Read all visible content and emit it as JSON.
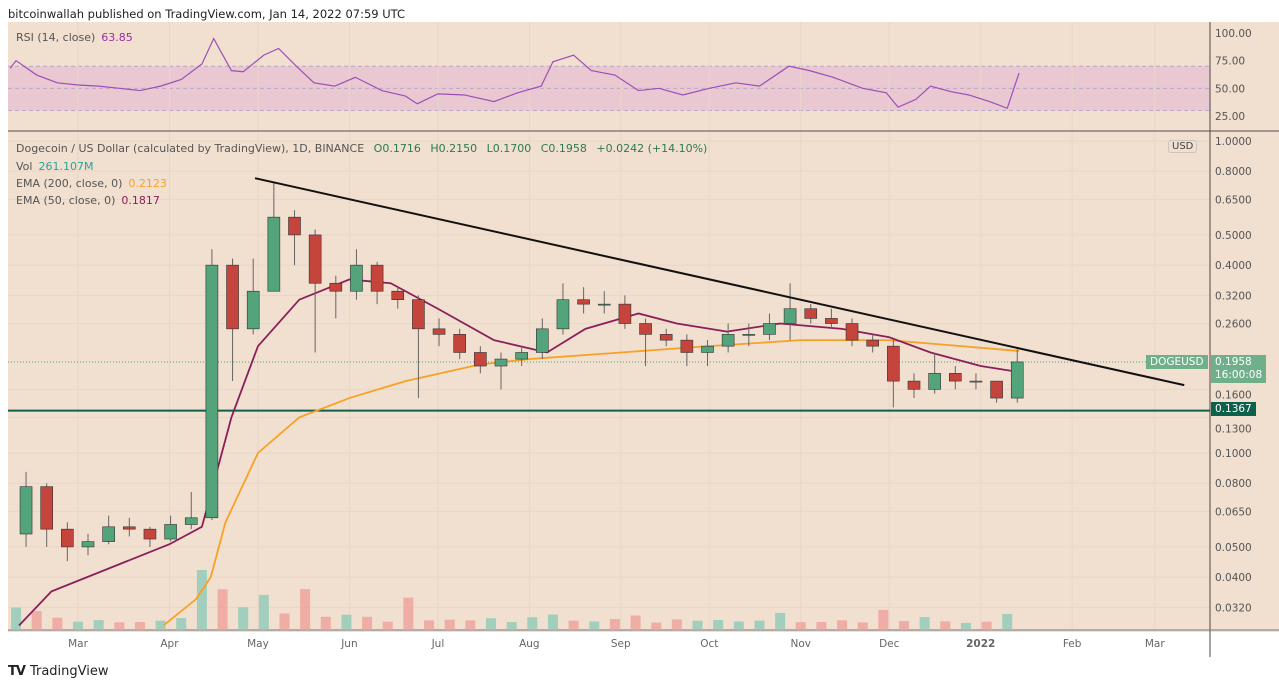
{
  "publisher_line": "bitcoinwallah published on TradingView.com, Jan 14, 2022 07:59 UTC",
  "rsi_legend": {
    "label": "RSI (14, close)",
    "value": "63.85"
  },
  "main_legend": {
    "title": "Dogecoin / US Dollar (calculated by TradingView), 1D, BINANCE",
    "open": "O0.1716",
    "high": "H0.2150",
    "low": "L0.1700",
    "close": "C0.1958",
    "change": "+0.0242 (+14.10%)",
    "vol_label": "Vol",
    "vol_value": "261.107M",
    "ema200_label": "EMA (200, close, 0)",
    "ema200_value": "0.2123",
    "ema50_label": "EMA (50, close, 0)",
    "ema50_value": "0.1817"
  },
  "symbol_tag": "DOGEUSD",
  "price_tag": {
    "price": "0.1958",
    "countdown": "16:00:08"
  },
  "support_tag": "0.1367",
  "currency": "USD",
  "branding": "TradingView",
  "colors": {
    "background": "#f1dfcf",
    "up": "#53a47a",
    "down": "#c5453c",
    "ema200": "#f7a227",
    "ema50": "#8a1f5a",
    "rsi": "#9b4fb8",
    "rsi_band": "#e9c8d2",
    "support": "#0d6049",
    "trendline": "#111111"
  },
  "chart_data": [
    {
      "type": "line",
      "title": "RSI (14, close)",
      "ylim": [
        0,
        100
      ],
      "yticks": [
        "100.00",
        "75.00",
        "50.00",
        "25.00"
      ],
      "band": [
        30,
        70
      ],
      "series": [
        {
          "name": "RSI (14, close)",
          "points": [
            [
              "2021-02-06",
              68
            ],
            [
              "2021-02-08",
              75
            ],
            [
              "2021-02-15",
              62
            ],
            [
              "2021-02-22",
              55
            ],
            [
              "2021-03-01",
              53
            ],
            [
              "2021-03-08",
              52
            ],
            [
              "2021-03-15",
              50
            ],
            [
              "2021-03-22",
              48
            ],
            [
              "2021-03-29",
              52
            ],
            [
              "2021-04-05",
              58
            ],
            [
              "2021-04-12",
              72
            ],
            [
              "2021-04-16",
              95
            ],
            [
              "2021-04-22",
              66
            ],
            [
              "2021-04-26",
              65
            ],
            [
              "2021-05-03",
              80
            ],
            [
              "2021-05-08",
              86
            ],
            [
              "2021-05-14",
              70
            ],
            [
              "2021-05-20",
              55
            ],
            [
              "2021-05-27",
              52
            ],
            [
              "2021-06-03",
              60
            ],
            [
              "2021-06-12",
              48
            ],
            [
              "2021-06-20",
              43
            ],
            [
              "2021-06-24",
              36
            ],
            [
              "2021-07-01",
              45
            ],
            [
              "2021-07-10",
              44
            ],
            [
              "2021-07-20",
              38
            ],
            [
              "2021-07-28",
              46
            ],
            [
              "2021-08-05",
              52
            ],
            [
              "2021-08-09",
              74
            ],
            [
              "2021-08-16",
              80
            ],
            [
              "2021-08-22",
              66
            ],
            [
              "2021-08-30",
              62
            ],
            [
              "2021-09-07",
              48
            ],
            [
              "2021-09-14",
              50
            ],
            [
              "2021-09-22",
              44
            ],
            [
              "2021-10-01",
              50
            ],
            [
              "2021-10-10",
              55
            ],
            [
              "2021-10-18",
              52
            ],
            [
              "2021-10-28",
              70
            ],
            [
              "2021-11-04",
              66
            ],
            [
              "2021-11-12",
              60
            ],
            [
              "2021-11-22",
              50
            ],
            [
              "2021-11-30",
              46
            ],
            [
              "2021-12-04",
              33
            ],
            [
              "2021-12-10",
              40
            ],
            [
              "2021-12-15",
              52
            ],
            [
              "2021-12-22",
              47
            ],
            [
              "2021-12-28",
              44
            ],
            [
              "2022-01-04",
              38
            ],
            [
              "2022-01-10",
              32
            ],
            [
              "2022-01-14",
              63.85
            ]
          ]
        }
      ]
    },
    {
      "type": "candlestick",
      "title": "Dogecoin / US Dollar (calculated by TradingView), 1D, BINANCE",
      "scale": "log",
      "ylim": [
        0.028,
        1.0
      ],
      "yticks": [
        "1.0000",
        "0.8000",
        "0.6500",
        "0.5000",
        "0.4000",
        "0.3200",
        "0.2600",
        "0.1600",
        "0.1300",
        "0.1000",
        "0.0800",
        "0.0650",
        "0.0500",
        "0.0400",
        "0.0320"
      ],
      "xticks": [
        "Mar",
        "Apr",
        "May",
        "Jun",
        "Jul",
        "Aug",
        "Sep",
        "Oct",
        "Nov",
        "Dec",
        "2022",
        "Feb",
        "Mar"
      ],
      "grid": true,
      "candles": [
        [
          "2021-02-08",
          0.055,
          0.087,
          0.05,
          0.078
        ],
        [
          "2021-02-15",
          0.078,
          0.08,
          0.05,
          0.057
        ],
        [
          "2021-02-22",
          0.057,
          0.06,
          0.045,
          0.05
        ],
        [
          "2021-03-01",
          0.05,
          0.055,
          0.047,
          0.052
        ],
        [
          "2021-03-08",
          0.052,
          0.063,
          0.051,
          0.058
        ],
        [
          "2021-03-15",
          0.058,
          0.062,
          0.054,
          0.057
        ],
        [
          "2021-03-22",
          0.057,
          0.058,
          0.05,
          0.053
        ],
        [
          "2021-03-29",
          0.053,
          0.063,
          0.052,
          0.059
        ],
        [
          "2021-04-05",
          0.059,
          0.075,
          0.057,
          0.062
        ],
        [
          "2021-04-12",
          0.062,
          0.45,
          0.061,
          0.4
        ],
        [
          "2021-04-19",
          0.4,
          0.42,
          0.17,
          0.25
        ],
        [
          "2021-04-26",
          0.25,
          0.42,
          0.24,
          0.33
        ],
        [
          "2021-05-03",
          0.33,
          0.74,
          0.33,
          0.57
        ],
        [
          "2021-05-10",
          0.57,
          0.6,
          0.4,
          0.5
        ],
        [
          "2021-05-17",
          0.5,
          0.52,
          0.21,
          0.35
        ],
        [
          "2021-05-24",
          0.35,
          0.37,
          0.27,
          0.33
        ],
        [
          "2021-05-31",
          0.33,
          0.45,
          0.31,
          0.4
        ],
        [
          "2021-06-07",
          0.4,
          0.41,
          0.3,
          0.33
        ],
        [
          "2021-06-14",
          0.33,
          0.34,
          0.29,
          0.31
        ],
        [
          "2021-06-21",
          0.31,
          0.32,
          0.15,
          0.25
        ],
        [
          "2021-06-28",
          0.25,
          0.27,
          0.22,
          0.24
        ],
        [
          "2021-07-05",
          0.24,
          0.25,
          0.2,
          0.21
        ],
        [
          "2021-07-12",
          0.21,
          0.22,
          0.18,
          0.19
        ],
        [
          "2021-07-19",
          0.19,
          0.21,
          0.16,
          0.2
        ],
        [
          "2021-07-26",
          0.2,
          0.22,
          0.19,
          0.21
        ],
        [
          "2021-08-02",
          0.21,
          0.27,
          0.2,
          0.25
        ],
        [
          "2021-08-09",
          0.25,
          0.35,
          0.24,
          0.31
        ],
        [
          "2021-08-16",
          0.31,
          0.34,
          0.28,
          0.3
        ],
        [
          "2021-08-23",
          0.3,
          0.33,
          0.28,
          0.3
        ],
        [
          "2021-08-30",
          0.3,
          0.32,
          0.25,
          0.26
        ],
        [
          "2021-09-06",
          0.26,
          0.27,
          0.19,
          0.24
        ],
        [
          "2021-09-13",
          0.24,
          0.25,
          0.22,
          0.23
        ],
        [
          "2021-09-20",
          0.23,
          0.24,
          0.19,
          0.21
        ],
        [
          "2021-09-27",
          0.21,
          0.23,
          0.19,
          0.22
        ],
        [
          "2021-10-04",
          0.22,
          0.26,
          0.21,
          0.24
        ],
        [
          "2021-10-11",
          0.24,
          0.26,
          0.22,
          0.24
        ],
        [
          "2021-10-18",
          0.24,
          0.28,
          0.23,
          0.26
        ],
        [
          "2021-10-25",
          0.26,
          0.35,
          0.23,
          0.29
        ],
        [
          "2021-11-01",
          0.29,
          0.3,
          0.26,
          0.27
        ],
        [
          "2021-11-08",
          0.27,
          0.29,
          0.25,
          0.26
        ],
        [
          "2021-11-15",
          0.26,
          0.27,
          0.22,
          0.23
        ],
        [
          "2021-11-22",
          0.23,
          0.24,
          0.21,
          0.22
        ],
        [
          "2021-11-29",
          0.22,
          0.23,
          0.14,
          0.17
        ],
        [
          "2021-12-06",
          0.17,
          0.18,
          0.15,
          0.16
        ],
        [
          "2021-12-13",
          0.16,
          0.21,
          0.155,
          0.18
        ],
        [
          "2021-12-20",
          0.18,
          0.19,
          0.16,
          0.17
        ],
        [
          "2021-12-27",
          0.17,
          0.18,
          0.16,
          0.17
        ],
        [
          "2022-01-03",
          0.17,
          0.17,
          0.145,
          0.15
        ],
        [
          "2022-01-10",
          0.15,
          0.215,
          0.145,
          0.1958
        ]
      ],
      "ema50": [
        [
          "2021-02-09",
          0.028
        ],
        [
          "2021-02-20",
          0.036
        ],
        [
          "2021-03-15",
          0.044
        ],
        [
          "2021-04-01",
          0.051
        ],
        [
          "2021-04-12",
          0.058
        ],
        [
          "2021-04-16",
          0.08
        ],
        [
          "2021-04-22",
          0.13
        ],
        [
          "2021-05-01",
          0.22
        ],
        [
          "2021-05-15",
          0.31
        ],
        [
          "2021-06-01",
          0.36
        ],
        [
          "2021-06-15",
          0.35
        ],
        [
          "2021-07-01",
          0.29
        ],
        [
          "2021-07-20",
          0.23
        ],
        [
          "2021-08-07",
          0.21
        ],
        [
          "2021-08-20",
          0.25
        ],
        [
          "2021-09-07",
          0.28
        ],
        [
          "2021-09-20",
          0.26
        ],
        [
          "2021-10-07",
          0.245
        ],
        [
          "2021-10-25",
          0.26
        ],
        [
          "2021-11-15",
          0.25
        ],
        [
          "2021-12-01",
          0.235
        ],
        [
          "2021-12-15",
          0.21
        ],
        [
          "2022-01-01",
          0.19
        ],
        [
          "2022-01-14",
          0.1817
        ]
      ],
      "ema200": [
        [
          "2021-03-30",
          0.028
        ],
        [
          "2021-04-10",
          0.034
        ],
        [
          "2021-04-15",
          0.04
        ],
        [
          "2021-04-20",
          0.06
        ],
        [
          "2021-05-01",
          0.1
        ],
        [
          "2021-05-15",
          0.13
        ],
        [
          "2021-06-01",
          0.15
        ],
        [
          "2021-06-20",
          0.17
        ],
        [
          "2021-07-15",
          0.192
        ],
        [
          "2021-08-01",
          0.2
        ],
        [
          "2021-09-01",
          0.21
        ],
        [
          "2021-10-01",
          0.22
        ],
        [
          "2021-11-01",
          0.23
        ],
        [
          "2021-12-01",
          0.23
        ],
        [
          "2022-01-14",
          0.2123
        ]
      ],
      "trendline": [
        [
          "2021-04-30",
          0.76
        ],
        [
          "2022-03-11",
          0.165
        ]
      ],
      "support_level": 0.1367,
      "current_price": 0.1958
    }
  ]
}
